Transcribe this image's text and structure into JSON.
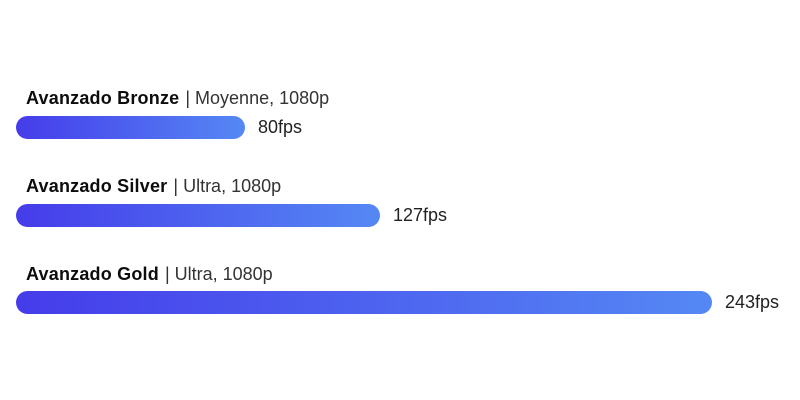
{
  "chart_data": {
    "type": "bar",
    "orientation": "horizontal",
    "title": "",
    "xlabel": "",
    "ylabel": "",
    "value_unit": "fps",
    "axis_range": [
      0,
      243
    ],
    "grid": false,
    "legend": false,
    "categories": [
      "Avanzado Bronze",
      "Avanzado Silver",
      "Avanzado Gold"
    ],
    "values": [
      80,
      127,
      243
    ],
    "items": [
      {
        "name": "Avanzado Bronze",
        "detail": "| Moyenne, 1080p",
        "fps": 80,
        "fps_label": "80fps"
      },
      {
        "name": "Avanzado Silver",
        "detail": "| Ultra, 1080p",
        "fps": 127,
        "fps_label": "127fps"
      },
      {
        "name": "Avanzado Gold",
        "detail": "| Ultra, 1080p",
        "fps": 243,
        "fps_label": "243fps"
      }
    ],
    "max_fps": 243,
    "colors": {
      "bar_gradient_start": "#453cea",
      "bar_gradient_end": "#5588f4",
      "background": "#ffffff",
      "name_text": "#0d0d0d",
      "detail_text": "#333333",
      "value_text": "#222222"
    }
  }
}
